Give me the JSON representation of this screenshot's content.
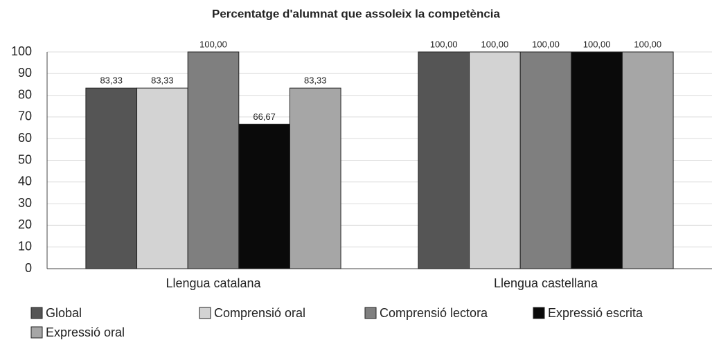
{
  "chart_data": {
    "type": "bar",
    "title": "Percentatge d'alumnat que assoleix la competència",
    "categories": [
      "Llengua catalana",
      "Llengua castellana"
    ],
    "series": [
      {
        "name": "Global",
        "color": "#555555",
        "values": [
          83.33,
          100
        ],
        "value_labels": [
          "83,33",
          "100,00"
        ]
      },
      {
        "name": "Comprensió oral",
        "color": "#d3d3d3",
        "values": [
          83.33,
          100
        ],
        "value_labels": [
          "83,33",
          "100,00"
        ]
      },
      {
        "name": "Comprensió lectora",
        "color": "#7f7f7f",
        "values": [
          100,
          100
        ],
        "value_labels": [
          "100,00",
          "100,00"
        ]
      },
      {
        "name": "Expressió escrita",
        "color": "#0a0a0a",
        "values": [
          66.67,
          100
        ],
        "value_labels": [
          "66,67",
          "100,00"
        ]
      },
      {
        "name": "Expressió oral",
        "color": "#a6a6a6",
        "values": [
          83.33,
          100
        ],
        "value_labels": [
          "83,33",
          "100,00"
        ]
      }
    ],
    "ylim": [
      0,
      100
    ],
    "yticks": [
      0,
      10,
      20,
      30,
      40,
      50,
      60,
      70,
      80,
      90,
      100
    ],
    "grid": true,
    "legend": "bottom"
  }
}
